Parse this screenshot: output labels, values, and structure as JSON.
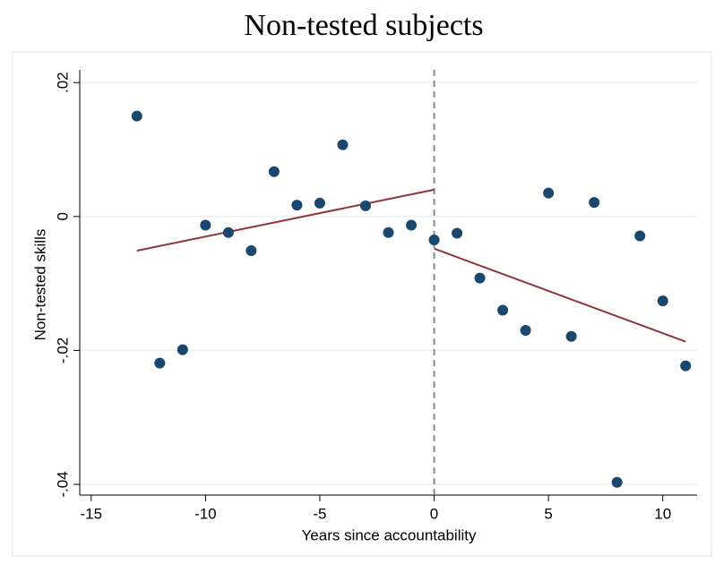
{
  "chart_data": {
    "type": "scatter",
    "title": "Non-tested subjects",
    "x_label": "Years since accountability",
    "y_label": "Non-tested skills",
    "x": [
      -13,
      -12,
      -11,
      -10,
      -9,
      -8,
      -7,
      -6,
      -5,
      -4,
      -3,
      -2,
      -1,
      0,
      1,
      2,
      3,
      4,
      5,
      6,
      7,
      8,
      9,
      10,
      11
    ],
    "values": [
      0.015,
      -0.0219,
      -0.0199,
      -0.0013,
      -0.0024,
      -0.0051,
      0.0067,
      0.0017,
      0.002,
      0.0107,
      0.0016,
      -0.0024,
      -0.0013,
      -0.0035,
      -0.0025,
      -0.0092,
      -0.014,
      -0.017,
      0.0035,
      -0.0179,
      0.0021,
      -0.0397,
      -0.0029,
      -0.0126,
      -0.0223
    ],
    "color": "#1a476f",
    "fit_lines": [
      {
        "x": [
          -13,
          0
        ],
        "values": [
          -0.0051,
          0.004
        ],
        "color": "#90353b"
      },
      {
        "x": [
          0,
          11
        ],
        "values": [
          -0.0048,
          -0.0187
        ],
        "color": "#90353b"
      }
    ],
    "reference_line_x": 0,
    "xlim": [
      -15.5,
      11.5
    ],
    "ylim": [
      -0.0416,
      0.0219
    ],
    "xticks": [
      -15,
      -10,
      -5,
      0,
      5,
      10
    ],
    "yticks": [
      {
        "value": 0.02,
        "label": ".02"
      },
      0,
      {
        "value": -0.02,
        "label": "-.02"
      },
      {
        "value": -0.04,
        "label": "-.04"
      }
    ],
    "grid": true
  }
}
